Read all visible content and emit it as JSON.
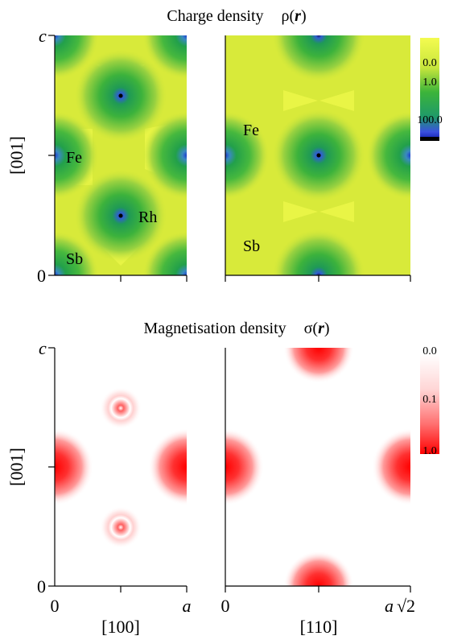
{
  "charge_panel": {
    "title_prefix": "Charge density",
    "title_symbol": "ρ(",
    "title_var": "r",
    "title_close": ")",
    "y_axis_label": "[001]",
    "y_top_tick": "c",
    "y_bottom_tick": "0",
    "left_labels": {
      "fe": "Fe",
      "rh": "Rh",
      "sb": "Sb"
    },
    "right_labels": {
      "fe": "Fe",
      "sb": "Sb"
    },
    "colorbar_ticks": [
      "0.0",
      "1.0",
      "100.0"
    ],
    "colors": {
      "background": "#d8ea3a",
      "ring": "#2fb43a",
      "core": "#3a5ae0",
      "nucleus": "#000000",
      "highlight": "#eef84a"
    }
  },
  "magnetisation_panel": {
    "title_prefix": "Magnetisation density",
    "title_symbol": "σ(",
    "title_var": "r",
    "title_close": ")",
    "y_axis_label": "[001]",
    "y_top_tick": "c",
    "y_bottom_tick": "0",
    "colorbar_ticks": [
      "0.0",
      "0.1",
      "1.0"
    ],
    "colors": {
      "background": "#ffffff",
      "peak": "#ff0000"
    }
  },
  "x_axes": {
    "left_start": "0",
    "left_end": "a",
    "left_direction": "[100]",
    "right_start": "0",
    "right_end": "a",
    "right_end_sqrt": "√2",
    "right_direction": "[110]"
  }
}
